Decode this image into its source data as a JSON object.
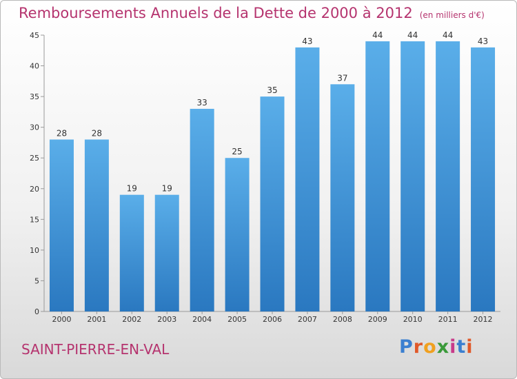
{
  "title": "Remboursements Annuels de la Dette de 2000 à 2012",
  "unit": "(en milliers d'€)",
  "commune": "SAINT-PIERRE-EN-VAL",
  "logo": {
    "letters": [
      "P",
      "r",
      "o",
      "x",
      "i",
      "t",
      "i"
    ],
    "colors": [
      "#3b7fd0",
      "#e0592a",
      "#f0a020",
      "#3a9a3a",
      "#c83a8a",
      "#3b7fd0",
      "#e0592a"
    ]
  },
  "colors": {
    "bar_top": "#5aaee9",
    "bar_bottom": "#2a78c0",
    "title": "#b5336e",
    "axis": "#999999"
  },
  "chart_data": {
    "type": "bar",
    "categories": [
      "2000",
      "2001",
      "2002",
      "2003",
      "2004",
      "2005",
      "2006",
      "2007",
      "2008",
      "2009",
      "2010",
      "2011",
      "2012"
    ],
    "values": [
      28,
      28,
      19,
      19,
      33,
      25,
      35,
      43,
      37,
      44,
      44,
      44,
      43
    ],
    "ylim": [
      0,
      45
    ],
    "yticks": [
      0,
      5,
      10,
      15,
      20,
      25,
      30,
      35,
      40,
      45
    ],
    "grid": false,
    "legend": "none"
  }
}
